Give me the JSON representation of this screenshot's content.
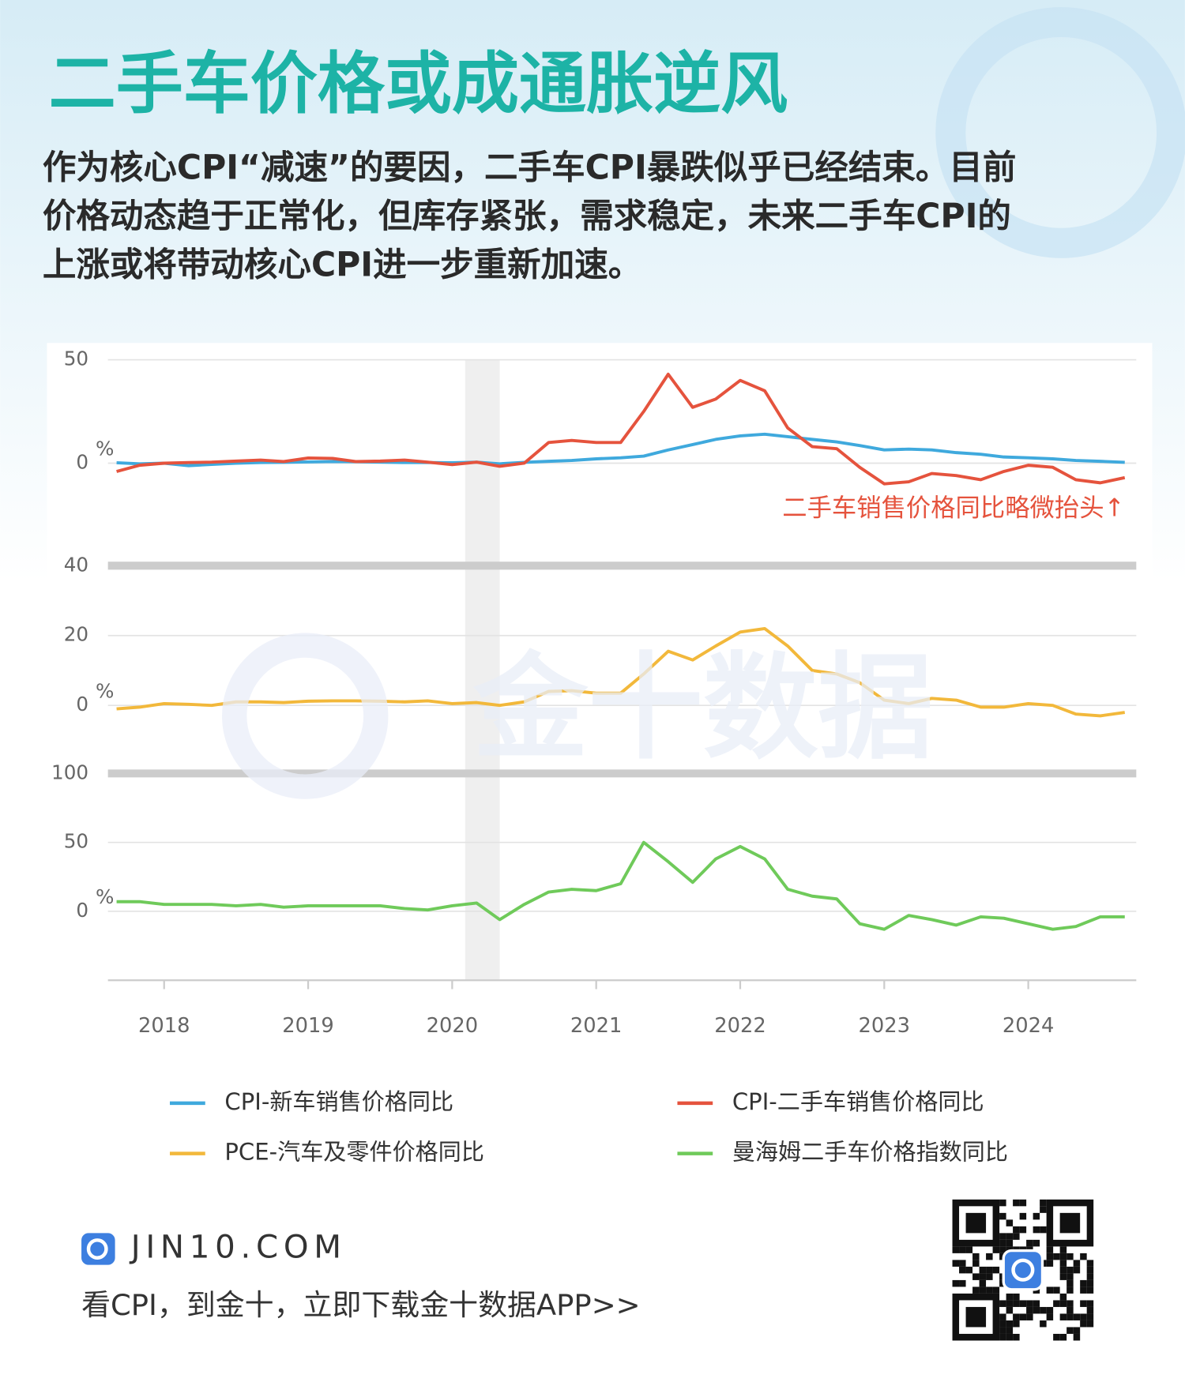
{
  "header": {
    "title": "二手车价格或成通胀逆风",
    "description": [
      "作为核心CPI“减速”的要因，二手车CPI暴跌似乎已经结束。目前",
      "价格动态趋于正常化，但库存紧张，需求稳定，未来二手车CPI的",
      "上涨或将带动核心CPI进一步重新加速。"
    ],
    "watermark": "金十数据"
  },
  "chart_data": [
    {
      "type": "line",
      "x": [
        2017.67,
        2017.83,
        2018,
        2018.17,
        2018.33,
        2018.5,
        2018.67,
        2018.83,
        2019,
        2019.17,
        2019.33,
        2019.5,
        2019.67,
        2019.83,
        2020,
        2020.17,
        2020.33,
        2020.5,
        2020.67,
        2020.83,
        2021,
        2021.17,
        2021.33,
        2021.5,
        2021.67,
        2021.83,
        2022,
        2022.17,
        2022.33,
        2022.5,
        2022.67,
        2022.83,
        2023,
        2023.17,
        2023.33,
        2023.5,
        2023.67,
        2023.83,
        2024,
        2024.17,
        2024.33,
        2024.5,
        2024.67
      ],
      "xlim": [
        2017.61,
        2024.75
      ],
      "ylim": [
        -50,
        50
      ],
      "yticks": [
        0,
        50
      ],
      "y_unit": "%",
      "grid": true,
      "shade": [
        2020.09,
        2020.33
      ],
      "annotation": "二手车销售价格同比略微抬头↑",
      "series": [
        {
          "name": "CPI-新车销售价格同比",
          "color": "#3fa9dd",
          "values": [
            0.2,
            -0.3,
            0,
            -1.2,
            -0.6,
            0,
            0.3,
            0.4,
            0.6,
            0.8,
            0.7,
            0.5,
            0.3,
            0.3,
            0.2,
            0.5,
            -0.3,
            0.4,
            0.9,
            1.3,
            2.1,
            2.6,
            3.4,
            6.4,
            9,
            11.5,
            13.2,
            14,
            12.8,
            11.5,
            10.3,
            8.5,
            6.4,
            6.8,
            6.4,
            5.1,
            4.3,
            3,
            2.6,
            2.1,
            1.3,
            0.9,
            0.4
          ]
        },
        {
          "name": "CPI-二手车销售价格同比",
          "color": "#e5533d",
          "values": [
            -4,
            -1,
            0,
            0.3,
            0.5,
            1,
            1.5,
            0.8,
            2.5,
            2.3,
            0.8,
            1,
            1.5,
            0.5,
            -0.7,
            0.5,
            -1.5,
            0,
            10,
            11,
            10,
            10,
            25,
            43,
            27,
            31,
            40,
            35,
            17,
            8,
            7,
            -2,
            -10,
            -9,
            -5,
            -6,
            -8,
            -4,
            -1,
            -2,
            -8,
            -9.5,
            -7
          ]
        }
      ]
    },
    {
      "type": "line",
      "x": [
        2017.67,
        2017.83,
        2018,
        2018.17,
        2018.33,
        2018.5,
        2018.67,
        2018.83,
        2019,
        2019.17,
        2019.33,
        2019.5,
        2019.67,
        2019.83,
        2020,
        2020.17,
        2020.33,
        2020.5,
        2020.67,
        2020.83,
        2021,
        2021.17,
        2021.33,
        2021.5,
        2021.67,
        2021.83,
        2022,
        2022.17,
        2022.33,
        2022.5,
        2022.67,
        2022.83,
        2023,
        2023.17,
        2023.33,
        2023.5,
        2023.67,
        2023.83,
        2024,
        2024.17,
        2024.33,
        2024.5,
        2024.67
      ],
      "xlim": [
        2017.61,
        2024.75
      ],
      "ylim": [
        -20,
        40
      ],
      "yticks": [
        0,
        20,
        40
      ],
      "y_unit": "%",
      "grid": true,
      "shade": [
        2020.09,
        2020.33
      ],
      "series": [
        {
          "name": "PCE-汽车及零件价格同比",
          "color": "#f2b83b",
          "values": [
            -1,
            -0.5,
            0.5,
            0.3,
            0,
            1,
            1,
            0.8,
            1.2,
            1.3,
            1.3,
            1.2,
            1,
            1.3,
            0.5,
            0.8,
            0,
            1,
            4,
            4.2,
            3.5,
            3.5,
            9,
            15.5,
            13,
            17,
            21,
            22,
            17,
            10,
            9,
            6.5,
            1.5,
            0.5,
            2,
            1.5,
            -0.5,
            -0.5,
            0.5,
            0,
            -2.5,
            -3,
            -2
          ]
        }
      ]
    },
    {
      "type": "line",
      "x": [
        2017.67,
        2017.83,
        2018,
        2018.17,
        2018.33,
        2018.5,
        2018.67,
        2018.83,
        2019,
        2019.17,
        2019.33,
        2019.5,
        2019.67,
        2019.83,
        2020,
        2020.17,
        2020.33,
        2020.5,
        2020.67,
        2020.83,
        2021,
        2021.17,
        2021.33,
        2021.5,
        2021.67,
        2021.83,
        2022,
        2022.17,
        2022.33,
        2022.5,
        2022.67,
        2022.83,
        2023,
        2023.17,
        2023.33,
        2023.5,
        2023.67,
        2023.83,
        2024,
        2024.17,
        2024.33,
        2024.5,
        2024.67
      ],
      "xlim": [
        2017.61,
        2024.75
      ],
      "xticks": [
        2018,
        2019,
        2020,
        2021,
        2022,
        2023,
        2024
      ],
      "ylim": [
        -50,
        100
      ],
      "yticks": [
        0,
        50,
        100
      ],
      "y_unit": "%",
      "grid": true,
      "shade": [
        2020.09,
        2020.33
      ],
      "series": [
        {
          "name": "曼海姆二手车价格指数同比",
          "color": "#6fca5a",
          "values": [
            7,
            7,
            5,
            5,
            5,
            4,
            5,
            3,
            4,
            4,
            4,
            4,
            2,
            1,
            4,
            6,
            -6,
            5,
            14,
            16,
            15,
            20,
            50,
            36,
            21,
            38,
            47,
            38,
            16,
            11,
            9,
            -9,
            -13,
            -3,
            -6,
            -10,
            -4,
            -5,
            -9,
            -13,
            -11,
            -4,
            -4
          ]
        }
      ]
    }
  ],
  "footer": {
    "site": "JIN10.COM",
    "cta": "看CPI，到金十，立即下载金十数据APP>>"
  }
}
